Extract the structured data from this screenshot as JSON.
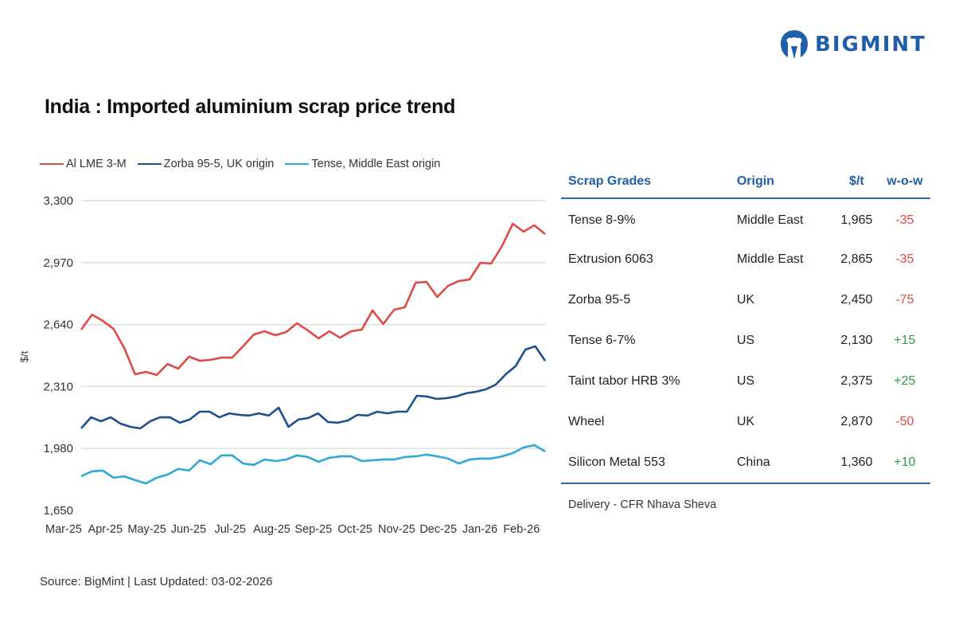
{
  "brand": {
    "logo_text": "BIGMINT",
    "color": "#1f5ea8"
  },
  "chart_data": {
    "type": "line",
    "title": "India : Imported aluminium scrap price trend",
    "xlabel": "",
    "ylabel": "$/t",
    "ylim": [
      1650,
      3300
    ],
    "yticks": [
      1650,
      1980,
      2310,
      2640,
      2970,
      3300
    ],
    "ytick_labels": [
      "1,650",
      "1,980",
      "2,310",
      "2,640",
      "2,970",
      "3,300"
    ],
    "xtick_labels": [
      "Mar-25",
      "Apr-25",
      "May-25",
      "Jun-25",
      "Jul-25",
      "Aug-25",
      "Sep-25",
      "Oct-25",
      "Nov-25",
      "Dec-25",
      "Jan-26",
      "Feb-26"
    ],
    "grid": true,
    "legend_position": "top-left",
    "series": [
      {
        "name": "Al LME 3-M",
        "color": "#e04a46",
        "values": [
          2613,
          2693,
          2660,
          2617,
          2515,
          2375,
          2388,
          2371,
          2430,
          2405,
          2469,
          2447,
          2452,
          2464,
          2464,
          2524,
          2587,
          2604,
          2583,
          2600,
          2647,
          2609,
          2566,
          2604,
          2570,
          2604,
          2613,
          2715,
          2643,
          2719,
          2732,
          2863,
          2867,
          2787,
          2846,
          2872,
          2880,
          2969,
          2965,
          3058,
          3177,
          3135,
          3169,
          3122
        ]
      },
      {
        "name": "Zorba 95-5, UK origin",
        "color": "#1d4e8f",
        "values": [
          2087,
          2146,
          2125,
          2146,
          2112,
          2095,
          2087,
          2125,
          2146,
          2146,
          2117,
          2134,
          2176,
          2176,
          2146,
          2167,
          2159,
          2155,
          2167,
          2155,
          2197,
          2095,
          2134,
          2142,
          2167,
          2121,
          2117,
          2129,
          2159,
          2155,
          2176,
          2167,
          2176,
          2176,
          2261,
          2257,
          2244,
          2248,
          2257,
          2274,
          2282,
          2295,
          2320,
          2375,
          2418,
          2507,
          2524,
          2447
        ]
      },
      {
        "name": "Tense, Middle East origin",
        "color": "#2ea8d8",
        "values": [
          1832,
          1858,
          1862,
          1824,
          1832,
          1811,
          1794,
          1824,
          1841,
          1871,
          1862,
          1917,
          1896,
          1943,
          1943,
          1900,
          1892,
          1921,
          1913,
          1921,
          1943,
          1934,
          1909,
          1930,
          1938,
          1938,
          1913,
          1917,
          1921,
          1921,
          1934,
          1938,
          1947,
          1938,
          1926,
          1900,
          1921,
          1926,
          1926,
          1938,
          1955,
          1985,
          1998,
          1964
        ]
      }
    ]
  },
  "table": {
    "headers": [
      "Scrap Grades",
      "Origin",
      "$/t",
      "w-o-w"
    ],
    "rows": [
      [
        "Tense 8-9%",
        "Middle East",
        "1,965",
        "-35"
      ],
      [
        "Extrusion 6063",
        "Middle East",
        "2,865",
        "-35"
      ],
      [
        "Zorba 95-5",
        "UK",
        "2,450",
        "-75"
      ],
      [
        "Tense 6-7%",
        "US",
        "2,130",
        "+15"
      ],
      [
        "Taint tabor HRB 3%",
        "US",
        "2,375",
        "+25"
      ],
      [
        "Wheel",
        "UK",
        "2,870",
        "-50"
      ],
      [
        "Silicon Metal 553",
        "China",
        "1,360",
        "+10"
      ]
    ],
    "footnote": "Delivery - CFR Nhava Sheva",
    "negative_color": "#e04a46",
    "positive_color": "#2e9a48"
  },
  "source": "Source: BigMint | Last Updated: 03-02-2026"
}
